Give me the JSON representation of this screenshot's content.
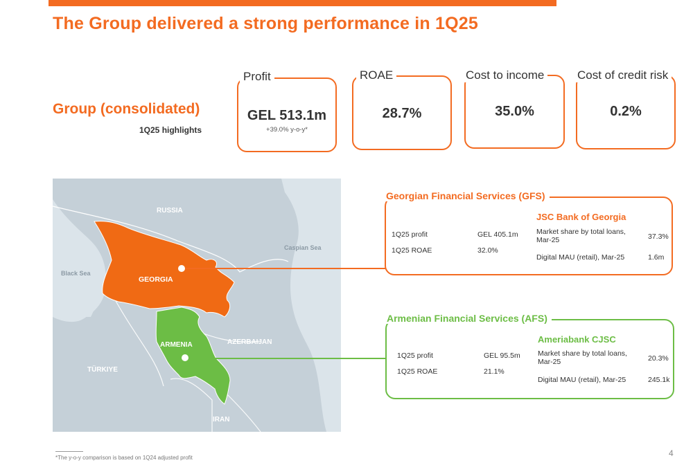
{
  "title": "The Group delivered a strong performance in 1Q25",
  "group": {
    "title": "Group (consolidated)",
    "subtitle": "1Q25 highlights"
  },
  "kpis": [
    {
      "label": "Profit",
      "value": "GEL 513.1m",
      "note": "+39.0% y-o-y*"
    },
    {
      "label": "ROAE",
      "value": "28.7%"
    },
    {
      "label": "Cost to income",
      "value": "35.0%"
    },
    {
      "label": "Cost of credit risk",
      "value": "0.2%"
    }
  ],
  "map": {
    "labels": {
      "russia": "RUSSIA",
      "caspian": "Caspian Sea",
      "black_sea": "Black Sea",
      "georgia": "GEORGIA",
      "armenia": "ARMENIA",
      "azerbaijan": "AZERBAIJAN",
      "turkiye": "TÜRKIYE",
      "iran": "IRAN"
    }
  },
  "gfs": {
    "title": "Georgian Financial Services (GFS)",
    "bank": "JSC Bank of Georgia",
    "rows": [
      {
        "label": "1Q25 profit",
        "value": "GEL 405.1m"
      },
      {
        "label": "1Q25 ROAE",
        "value": "32.0%"
      }
    ],
    "metrics": [
      {
        "label": "Market share by total loans, Mar-25",
        "value": "37.3%"
      },
      {
        "label": "Digital MAU (retail), Mar-25",
        "value": "1.6m"
      }
    ]
  },
  "afs": {
    "title": "Armenian Financial Services (AFS)",
    "bank": "Ameriabank CJSC",
    "rows": [
      {
        "label": "1Q25 profit",
        "value": "GEL 95.5m"
      },
      {
        "label": "1Q25 ROAE",
        "value": "21.1%"
      }
    ],
    "metrics": [
      {
        "label": "Market share by total loans, Mar-25",
        "value": "20.3%"
      },
      {
        "label": "Digital MAU (retail), Mar-25",
        "value": "245.1k"
      }
    ]
  },
  "footnote": "*The y-o-y comparison is based on 1Q24 adjusted profit",
  "page_number": "4",
  "colors": {
    "accent": "#f36b21",
    "green": "#6cbd45",
    "water": "#dbe4ea",
    "land": "#c5d0d8"
  }
}
